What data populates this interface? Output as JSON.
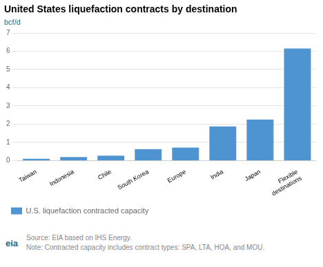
{
  "chart_data": {
    "type": "bar",
    "title": "United States liquefaction contracts by destination",
    "ylabel": "bcf/d",
    "categories": [
      "Taiwan",
      "Indonesia",
      "Chile",
      "South Korea",
      "Europe",
      "India",
      "Japan",
      "Flexible\ndestinations"
    ],
    "series": [
      {
        "name": "U.S. liquefaction contracted capacity",
        "color": "#4d94d0",
        "values": [
          0.1,
          0.2,
          0.27,
          0.63,
          0.72,
          1.88,
          2.25,
          6.15
        ]
      }
    ],
    "ylim": [
      0,
      7
    ],
    "yticks": [
      0,
      1,
      2,
      3,
      4,
      5,
      6,
      7
    ],
    "grid": true,
    "legend": "bottom",
    "annotations": [
      "eia",
      "Source: EIA based on IHS Energy.",
      "Note: Contracted capacity includes contract types: SPA, LTA, HOA, and MOU."
    ]
  }
}
